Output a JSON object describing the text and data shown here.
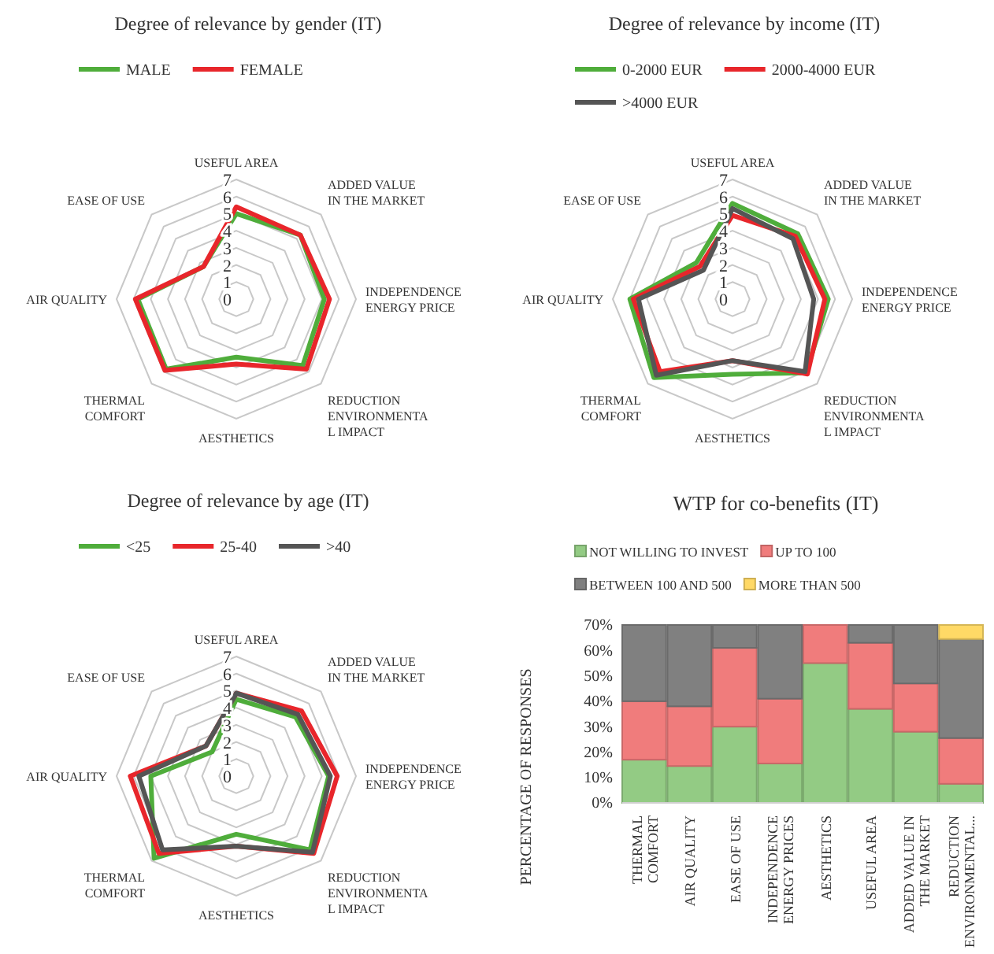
{
  "chart_data": [
    {
      "type": "radar",
      "title": "Degree of relevance by gender (IT)",
      "categories": [
        "USEFUL AREA",
        "ADDED VALUE\nIN THE MARKET",
        "INDEPENDENCE\nENERGY PRICE",
        "REDUCTION\nENVIRONMENTA\nL IMPACT",
        "AESTHETICS",
        "THERMAL\nCOMFORT",
        "AIR QUALITY",
        "EASE OF USE"
      ],
      "ylim": [
        0,
        7
      ],
      "yticks": [
        0,
        1,
        2,
        3,
        4,
        5,
        6,
        7
      ],
      "legend": "top",
      "series": [
        {
          "name": "MALE",
          "color": "#4fad3b",
          "values": [
            5.0,
            5.3,
            5.15,
            5.5,
            3.4,
            5.8,
            5.75,
            2.7
          ]
        },
        {
          "name": "FEMALE",
          "color": "#e8262b",
          "values": [
            5.4,
            5.3,
            5.45,
            5.8,
            3.8,
            5.9,
            5.9,
            2.7
          ]
        }
      ]
    },
    {
      "type": "radar",
      "title": "Degree of relevance by income (IT)",
      "categories": [
        "USEFUL AREA",
        "ADDED VALUE\nIN THE MARKET",
        "INDEPENDENCE\nENERGY PRICE",
        "REDUCTION\nENVIRONMENTA\nL IMPACT",
        "AESTHETICS",
        "THERMAL\nCOMFORT",
        "AIR QUALITY",
        "EASE OF USE"
      ],
      "ylim": [
        0,
        7
      ],
      "yticks": [
        0,
        1,
        2,
        3,
        4,
        5,
        6,
        7
      ],
      "legend": "top",
      "series": [
        {
          "name": "0-2000 EUR",
          "color": "#4fad3b",
          "values": [
            5.6,
            5.4,
            5.6,
            6.1,
            4.4,
            6.5,
            6.0,
            3.0
          ]
        },
        {
          "name": "2000-4000 EUR",
          "color": "#e8262b",
          "values": [
            4.9,
            5.2,
            5.4,
            6.2,
            3.6,
            6.0,
            5.8,
            2.7
          ]
        },
        {
          "name": ">4000 EUR",
          "color": "#555555",
          "values": [
            5.3,
            5.0,
            4.75,
            6.0,
            3.6,
            6.3,
            5.5,
            2.4
          ]
        }
      ]
    },
    {
      "type": "radar",
      "title": "Degree of relevance by age  (IT)",
      "categories": [
        "USEFUL AREA",
        "ADDED VALUE\nIN THE MARKET",
        "INDEPENDENCE\nENERGY PRICE",
        "REDUCTION\nENVIRONMENTA\nL IMPACT",
        "AESTHETICS",
        "THERMAL\nCOMFORT",
        "AIR QUALITY",
        "EASE OF USE"
      ],
      "ylim": [
        0,
        7
      ],
      "yticks": [
        0,
        1,
        2,
        3,
        4,
        5,
        6,
        7
      ],
      "legend": "top",
      "series": [
        {
          "name": "<25",
          "color": "#4fad3b",
          "values": [
            4.5,
            4.9,
            5.4,
            6.1,
            3.4,
            6.8,
            5.0,
            2.0
          ]
        },
        {
          "name": "25-40",
          "color": "#e8262b",
          "values": [
            4.85,
            5.4,
            5.9,
            6.4,
            4.1,
            6.4,
            6.2,
            2.5
          ]
        },
        {
          "name": ">40",
          "color": "#555555",
          "values": [
            4.85,
            5.1,
            5.5,
            6.3,
            4.1,
            6.1,
            5.7,
            2.5
          ]
        }
      ]
    },
    {
      "type": "bar",
      "title": "WTP for co-benefits (IT)",
      "ylabel": "PERCENTAGE OF RESPONSES",
      "categories": [
        "THERMAL\nCOMFORT",
        "AIR QUALITY",
        "EASE OF USE",
        "INDEPENDENCE\nENERGY PRICES",
        "AESTHETICS",
        "USEFUL AREA",
        "ADDED VALUE IN\nTHE MARKET",
        "REDUCTION\nENVIRONMENTAL..."
      ],
      "stacked": true,
      "legend": "top",
      "ylim": [
        0,
        70
      ],
      "yticks": [
        {
          "value": 0,
          "label": "0%"
        },
        {
          "value": 10,
          "label": "10%"
        },
        {
          "value": 20,
          "label": "20%"
        },
        {
          "value": 30,
          "label": "30%"
        },
        {
          "value": 40,
          "label": "40%"
        },
        {
          "value": 50,
          "label": "50%"
        },
        {
          "value": 60,
          "label": "60%"
        },
        {
          "value": 70,
          "label": "70%"
        }
      ],
      "series": [
        {
          "name": "NOT WILLING TO INVEST",
          "color": "#93cb84",
          "values": [
            17,
            14.5,
            30,
            15.5,
            55,
            37,
            28,
            7.5
          ]
        },
        {
          "name": "UP TO 100",
          "color": "#f07c7c",
          "values": [
            23,
            23.5,
            31,
            25.5,
            15,
            26,
            19,
            18
          ]
        },
        {
          "name": "BETWEEN 100 AND 500",
          "color": "#808080",
          "values": [
            30,
            32,
            9,
            29,
            null,
            7,
            23,
            39
          ]
        },
        {
          "name": "MORE THAN 500",
          "color": "#ffd966",
          "values": [
            null,
            null,
            null,
            null,
            null,
            null,
            null,
            5.5
          ]
        }
      ]
    }
  ]
}
